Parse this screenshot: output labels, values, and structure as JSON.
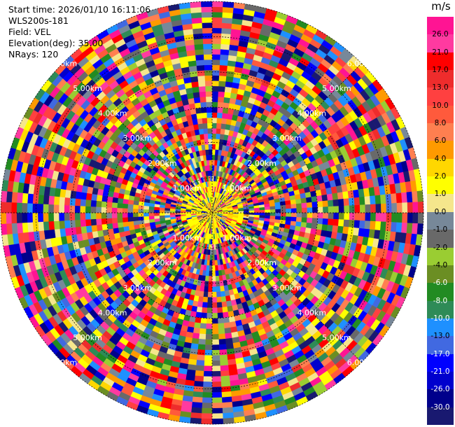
{
  "info": {
    "start_time": "Start time: 2026/01/10 16:11:06",
    "instrument": "WLS200s-181",
    "field": "Field: VEL",
    "elevation": "Elevation(deg): 35.00",
    "nrays": "NRays: 120"
  },
  "chart_data": {
    "type": "heatmap",
    "projection": "polar-ppi",
    "n_rays": 120,
    "n_gates": 40,
    "range_rings_km": [
      1,
      2,
      3,
      4,
      5,
      6
    ],
    "range_labels": [
      "1.00km",
      "2.00km",
      "3.00km",
      "4.00km",
      "5.00km",
      "6.00km"
    ],
    "grid": true,
    "colorbar": {
      "unit": "m/s",
      "position": "right",
      "ticks": [
        "26.0",
        "21.0",
        "17.0",
        "13.0",
        "10.0",
        "8.0",
        "6.0",
        "4.0",
        "2.0",
        "1.0",
        "0.0",
        "-1.0",
        "-2.0",
        "-4.0",
        "-6.0",
        "-8.0",
        "-10.0",
        "-13.0",
        "-17.0",
        "-21.0",
        "-26.0",
        "-30.0"
      ],
      "colors": [
        "#ff1493",
        "#ff3aa0",
        "#ff0000",
        "#ee2c2c",
        "#ff4040",
        "#ff5a3c",
        "#ff7f50",
        "#ff9a00",
        "#ffd700",
        "#ffff00",
        "#f5e68c",
        "#778899",
        "#696969",
        "#9acd32",
        "#6b8e23",
        "#228b22",
        "#2e8b57",
        "#1e90ff",
        "#4169e1",
        "#0000ff",
        "#0000cd",
        "#00008b",
        "#191970"
      ]
    }
  }
}
